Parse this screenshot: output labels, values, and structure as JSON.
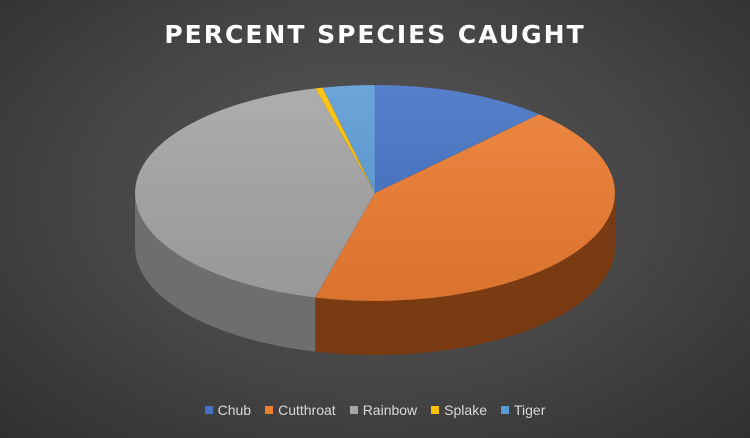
{
  "chart_data": {
    "type": "pie",
    "title": "PERCENT SPECIES CAUGHT",
    "categories": [
      "Chub",
      "Cutthroat",
      "Rainbow",
      "Splake",
      "Tiger"
    ],
    "values": [
      12,
      42,
      42,
      0.5,
      3.5
    ],
    "colors": [
      "#4472C4",
      "#ED7D31",
      "#A5A5A5",
      "#FFC000",
      "#5B9BD5"
    ],
    "side_colors": [
      "#2f5597",
      "#7a3a12",
      "#6e6e6e",
      "#b38600",
      "#3a6e9e"
    ],
    "legend_position": "bottom",
    "style": "3d"
  }
}
